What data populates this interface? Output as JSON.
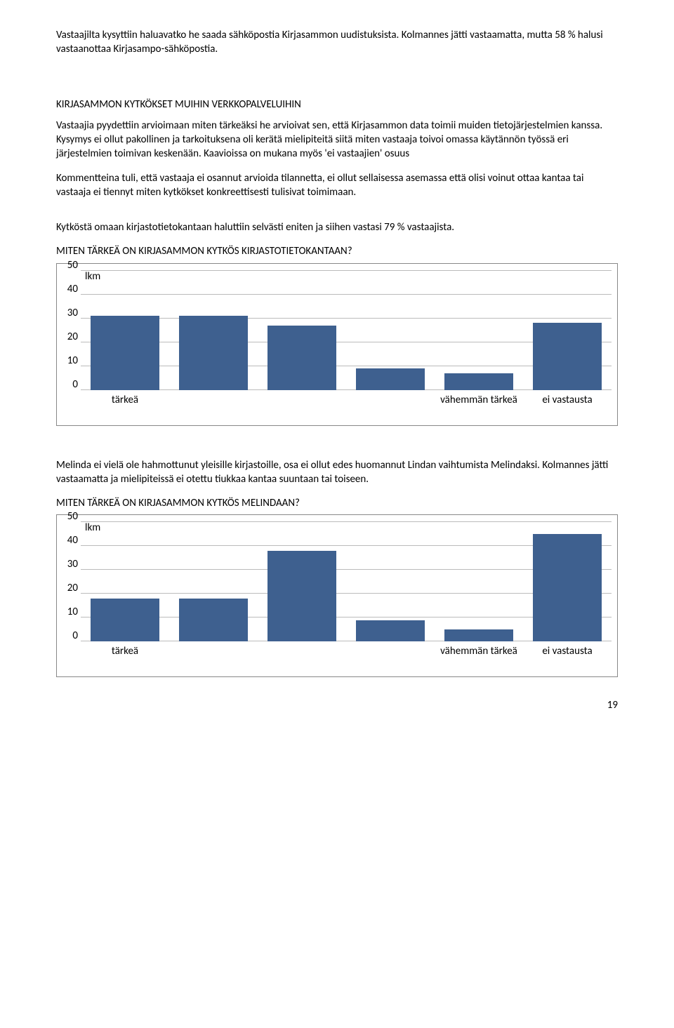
{
  "para1": "Vastaajilta kysyttiin haluavatko he saada sähköpostia Kirjasammon uudistuksista. Kolmannes jätti vastaamatta, mutta 58 % halusi vastaanottaa Kirjasampo-sähköpostia.",
  "heading1": "KIRJASAMMON KYTKÖKSET MUIHIN VERKKOPALVELUIHIN",
  "para2": "Vastaajia pyydettiin arvioimaan miten tärkeäksi he arvioivat sen, että Kirjasammon data toimii muiden tietojärjestelmien kanssa. Kysymys ei ollut pakollinen ja tarkoituksena oli kerätä mielipiteitä siitä miten vastaaja toivoi omassa käytännön työssä eri järjestelmien toimivan keskenään. Kaavioissa on mukana myös 'ei vastaajien' osuus",
  "para3": "Kommentteina tuli, että vastaaja ei osannut arvioida tilannetta, ei ollut sellaisessa asemassa että olisi voinut ottaa kantaa tai vastaaja ei tiennyt miten kytkökset konkreettisesti tulisivat toimimaan.",
  "para4": "Kytköstä omaan kirjastotietokantaan haluttiin selvästi eniten ja siihen vastasi 79 % vastaajista.",
  "chart1": {
    "title": "MITEN TÄRKEÄ ON KIRJASAMMON KYTKÖS KIRJASTOTIETOKANTAAN?",
    "lkm_label": "lkm",
    "ylim": [
      0,
      50
    ],
    "ytick_step": 10,
    "yticks": [
      0,
      10,
      20,
      30,
      40,
      50
    ],
    "categories": [
      "tärkeä",
      "",
      "",
      "",
      "vähemmän tärkeä",
      "ei vastausta"
    ],
    "values": [
      31,
      31,
      27,
      9,
      7,
      28
    ],
    "bar_color": "#3e608f",
    "grid_color": "#bbbbbb",
    "background_color": "#ffffff",
    "bar_width": 0.78,
    "label_fontsize": 15
  },
  "para5": "Melinda ei vielä ole hahmottunut yleisille kirjastoille, osa ei ollut edes huomannut Lindan vaihtumista Melindaksi. Kolmannes jätti vastaamatta ja mielipiteissä ei otettu tiukkaa kantaa suuntaan tai toiseen.",
  "chart2": {
    "title": "MITEN TÄRKEÄ ON KIRJASAMMON KYTKÖS MELINDAAN?",
    "lkm_label": "lkm",
    "ylim": [
      0,
      50
    ],
    "ytick_step": 10,
    "yticks": [
      0,
      10,
      20,
      30,
      40,
      50
    ],
    "categories": [
      "tärkeä",
      "",
      "",
      "",
      "vähemmän tärkeä",
      "ei vastausta"
    ],
    "values": [
      18,
      18,
      38,
      9,
      5,
      45
    ],
    "bar_color": "#3e608f",
    "grid_color": "#bbbbbb",
    "background_color": "#ffffff",
    "bar_width": 0.78,
    "label_fontsize": 15
  },
  "page_number": "19"
}
